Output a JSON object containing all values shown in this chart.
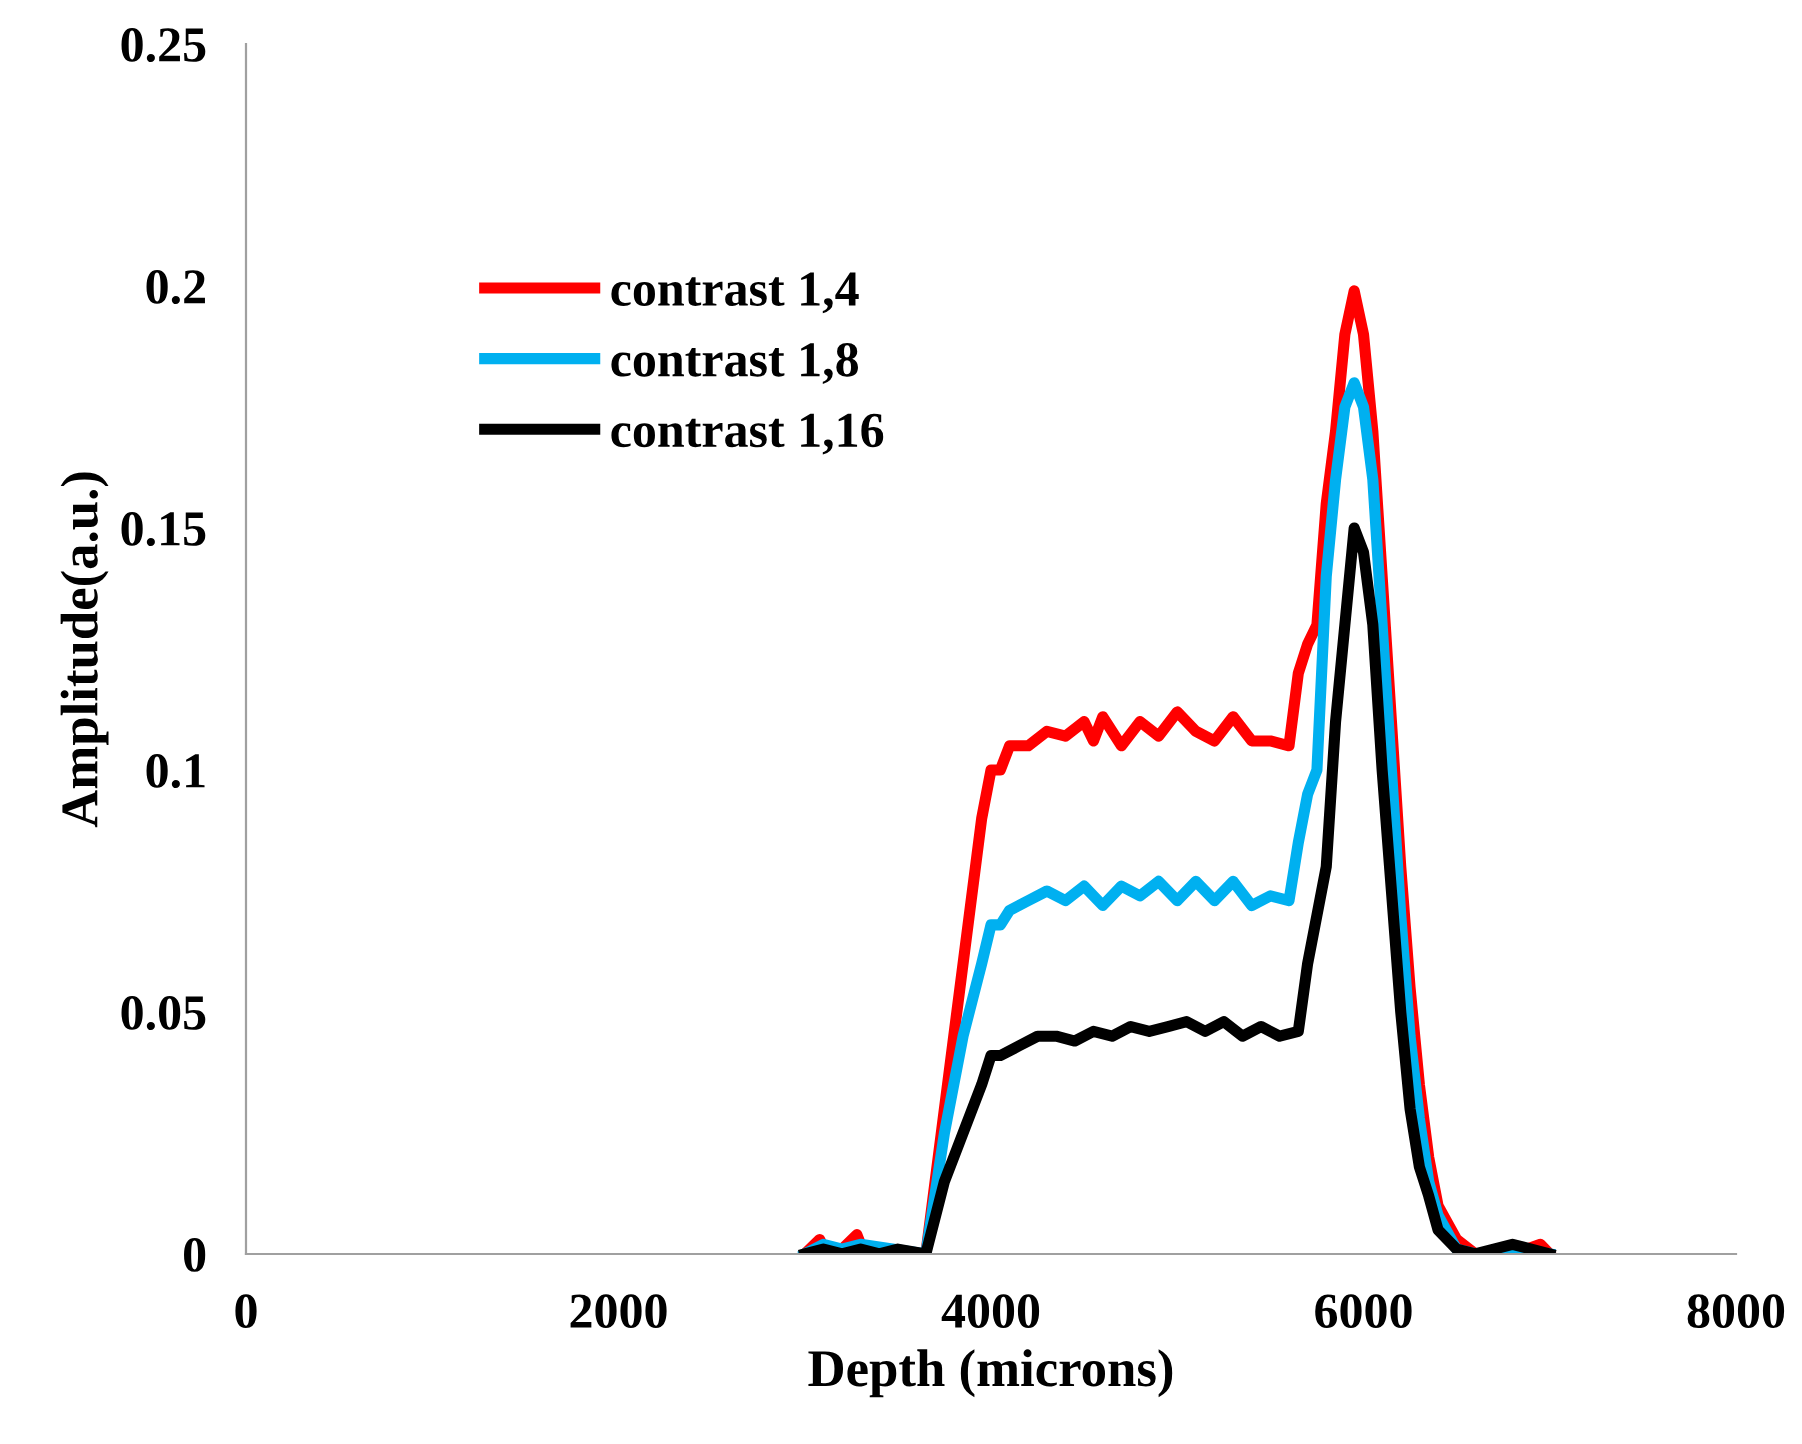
{
  "chart_data": {
    "type": "line",
    "xlabel": "Depth (microns)",
    "ylabel": "Amplitude(a.u.)",
    "xlim": [
      0,
      8000
    ],
    "xticks": [
      0,
      2000,
      4000,
      6000,
      8000
    ],
    "ylim": [
      0,
      0.25
    ],
    "yticks": [
      0,
      0.05,
      0.1,
      0.15,
      0.2,
      0.25
    ],
    "grid": false,
    "legend": "top left",
    "marker": "none",
    "line_style": "solid",
    "series": [
      {
        "name": "contrast 1,4",
        "color": "#ff0000",
        "x": [
          3000,
          3080,
          3120,
          3200,
          3280,
          3320,
          3400,
          3650,
          3750,
          3850,
          3950,
          4000,
          4050,
          4100,
          4200,
          4300,
          4400,
          4500,
          4550,
          4600,
          4700,
          4800,
          4900,
          5000,
          5100,
          5200,
          5300,
          5400,
          5500,
          5600,
          5650,
          5700,
          5750,
          5800,
          5850,
          5900,
          5950,
          6000,
          6050,
          6100,
          6150,
          6200,
          6250,
          6300,
          6350,
          6400,
          6500,
          6600,
          6800,
          6950,
          7000
        ],
        "values": [
          0,
          0.003,
          0,
          0.001,
          0.004,
          0,
          null,
          0,
          0.03,
          0.06,
          0.09,
          0.1,
          0.1,
          0.105,
          0.105,
          0.108,
          0.107,
          0.11,
          0.106,
          0.111,
          0.105,
          0.11,
          0.107,
          0.112,
          0.108,
          0.106,
          0.111,
          0.106,
          0.106,
          0.105,
          0.12,
          0.126,
          0.13,
          0.155,
          0.17,
          0.19,
          0.199,
          0.19,
          0.17,
          0.14,
          0.11,
          0.08,
          0.055,
          0.035,
          0.02,
          0.01,
          0.003,
          0,
          0,
          0.002,
          0
        ]
      },
      {
        "name": "contrast 1,8",
        "color": "#00b0f0",
        "x": [
          3000,
          3100,
          3200,
          3300,
          3650,
          3750,
          3850,
          3950,
          4000,
          4050,
          4100,
          4200,
          4300,
          4400,
          4500,
          4600,
          4700,
          4800,
          4900,
          5000,
          5100,
          5200,
          5300,
          5400,
          5500,
          5600,
          5650,
          5700,
          5750,
          5800,
          5850,
          5900,
          5950,
          6000,
          6050,
          6100,
          6150,
          6200,
          6250,
          6300,
          6350,
          6400,
          6500,
          6600,
          6800,
          7000
        ],
        "values": [
          0,
          0.002,
          0.001,
          0.002,
          0,
          0.025,
          0.045,
          0.06,
          0.068,
          0.068,
          0.071,
          0.073,
          0.075,
          0.073,
          0.076,
          0.072,
          0.076,
          0.074,
          0.077,
          0.073,
          0.077,
          0.073,
          0.077,
          0.072,
          0.074,
          0.073,
          0.085,
          0.095,
          0.1,
          0.14,
          0.16,
          0.175,
          0.18,
          0.175,
          0.16,
          0.13,
          0.1,
          0.07,
          0.045,
          0.028,
          0.015,
          0.008,
          0.001,
          0,
          0.001,
          0
        ]
      },
      {
        "name": "contrast 1,16",
        "color": "#000000",
        "x": [
          3000,
          3100,
          3200,
          3300,
          3400,
          3500,
          3650,
          3750,
          3850,
          3950,
          4000,
          4050,
          4150,
          4250,
          4350,
          4450,
          4550,
          4650,
          4750,
          4850,
          4950,
          5050,
          5150,
          5250,
          5350,
          5450,
          5550,
          5650,
          5700,
          5750,
          5800,
          5850,
          5900,
          5950,
          6000,
          6050,
          6100,
          6150,
          6200,
          6250,
          6300,
          6350,
          6400,
          6500,
          6600,
          6700,
          6800,
          6900,
          7000
        ],
        "values": [
          0,
          0.001,
          0,
          0.001,
          0,
          0.001,
          0,
          0.015,
          0.025,
          0.035,
          0.041,
          0.041,
          0.043,
          0.045,
          0.045,
          0.044,
          0.046,
          0.045,
          0.047,
          0.046,
          0.047,
          0.048,
          0.046,
          0.048,
          0.045,
          0.047,
          0.045,
          0.046,
          0.06,
          0.07,
          0.08,
          0.11,
          0.13,
          0.15,
          0.145,
          0.13,
          0.1,
          0.075,
          0.05,
          0.03,
          0.018,
          0.012,
          0.005,
          0.001,
          0,
          0.001,
          0.002,
          0.001,
          0
        ]
      }
    ]
  }
}
